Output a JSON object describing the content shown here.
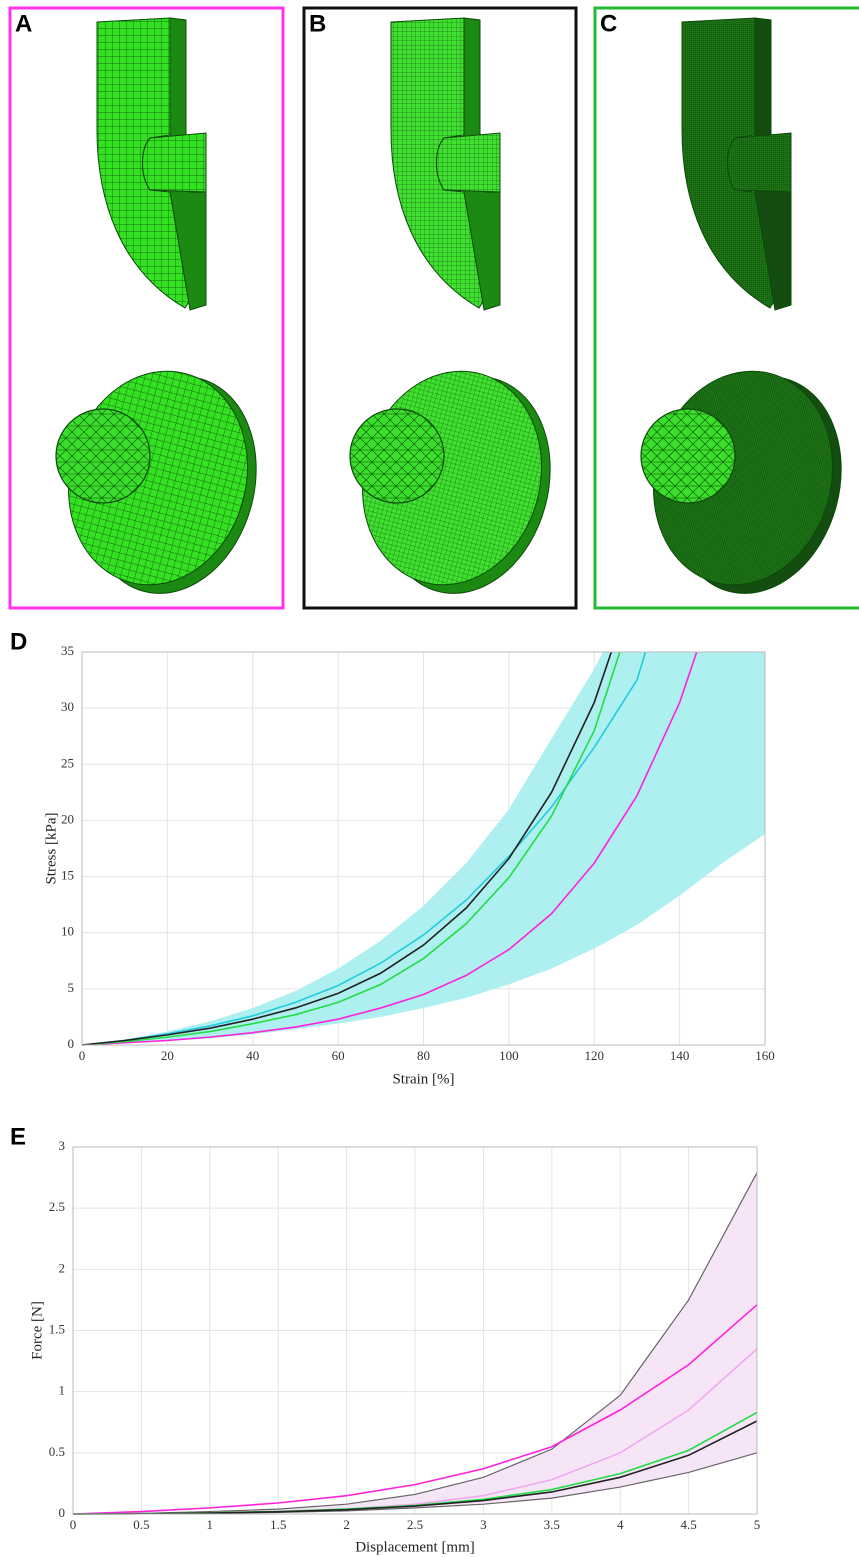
{
  "panels": [
    {
      "label": "A",
      "color": "#ff33ee"
    },
    {
      "label": "B",
      "color": "#111111"
    },
    {
      "label": "C",
      "color": "#22bb33"
    }
  ],
  "chart_data": [
    {
      "type": "line",
      "label": "D",
      "xlabel": "Strain [%]",
      "ylabel": "Stress [kPa]",
      "xlim": [
        0,
        160
      ],
      "ylim": [
        0,
        35
      ],
      "xticks": [
        0,
        20,
        40,
        60,
        80,
        100,
        120,
        140,
        160
      ],
      "yticks": [
        0,
        5,
        10,
        15,
        20,
        25,
        30,
        35
      ],
      "grid": true,
      "band": {
        "color": "#aef0f0",
        "x": [
          0,
          10,
          20,
          30,
          40,
          50,
          60,
          70,
          80,
          90,
          100,
          110,
          120,
          122,
          130,
          140,
          150,
          160
        ],
        "lower": [
          0,
          0.15,
          0.35,
          0.6,
          0.95,
          1.4,
          1.9,
          2.5,
          3.3,
          4.2,
          5.4,
          6.8,
          8.6,
          9.0,
          10.7,
          13.3,
          16.2,
          18.8
        ],
        "upper": [
          0,
          0.5,
          1.2,
          2.1,
          3.3,
          4.8,
          6.8,
          9.3,
          12.4,
          16.2,
          21,
          27.3,
          33.5,
          35,
          35,
          35,
          35,
          35
        ]
      },
      "series": [
        {
          "color": "#22ccdd",
          "x": [
            0,
            10,
            20,
            30,
            40,
            50,
            60,
            70,
            80,
            90,
            100,
            110,
            120,
            130,
            132
          ],
          "values": [
            0,
            0.4,
            1.0,
            1.7,
            2.6,
            3.8,
            5.3,
            7.3,
            9.8,
            12.9,
            16.8,
            21.2,
            26.5,
            32.5,
            35
          ]
        },
        {
          "color": "#ff22dd",
          "x": [
            0,
            10,
            20,
            30,
            40,
            50,
            60,
            70,
            80,
            90,
            100,
            110,
            120,
            130,
            140,
            144
          ],
          "values": [
            0,
            0.2,
            0.4,
            0.7,
            1.1,
            1.6,
            2.3,
            3.3,
            4.5,
            6.2,
            8.5,
            11.7,
            16.2,
            22.2,
            30.5,
            35
          ]
        },
        {
          "color": "#22dd44",
          "x": [
            0,
            10,
            20,
            30,
            40,
            50,
            60,
            70,
            80,
            90,
            100,
            110,
            120,
            126
          ],
          "values": [
            0,
            0.3,
            0.7,
            1.2,
            1.9,
            2.7,
            3.8,
            5.4,
            7.7,
            10.8,
            14.9,
            20.4,
            28,
            35
          ]
        },
        {
          "color": "#222222",
          "x": [
            0,
            10,
            20,
            30,
            40,
            50,
            60,
            70,
            80,
            90,
            100,
            110,
            120,
            124
          ],
          "values": [
            0,
            0.4,
            0.9,
            1.5,
            2.3,
            3.3,
            4.6,
            6.4,
            8.9,
            12.2,
            16.6,
            22.5,
            30.5,
            35
          ]
        }
      ]
    },
    {
      "type": "line",
      "label": "E",
      "xlabel": "Displacement [mm]",
      "ylabel": "Force [N]",
      "xlim": [
        0,
        5
      ],
      "ylim": [
        0,
        3
      ],
      "xticks": [
        0,
        0.5,
        1,
        1.5,
        2,
        2.5,
        3,
        3.5,
        4,
        4.5,
        5
      ],
      "yticks": [
        0,
        0.5,
        1,
        1.5,
        2,
        2.5,
        3
      ],
      "grid": true,
      "band": {
        "color": "#f6e4f7",
        "edge_color": "#666666",
        "x": [
          0,
          0.5,
          1,
          1.5,
          2,
          2.5,
          3,
          3.5,
          4,
          4.5,
          5
        ],
        "lower": [
          0,
          0.002,
          0.006,
          0.013,
          0.025,
          0.05,
          0.08,
          0.13,
          0.22,
          0.34,
          0.5
        ],
        "upper": [
          0,
          0.005,
          0.02,
          0.04,
          0.08,
          0.16,
          0.3,
          0.53,
          0.97,
          1.75,
          2.79
        ]
      },
      "series": [
        {
          "color": "#eeaaee",
          "x": [
            0,
            0.5,
            1,
            1.5,
            2,
            2.5,
            3,
            3.5,
            4,
            4.5,
            5
          ],
          "values": [
            0,
            0.003,
            0.01,
            0.02,
            0.04,
            0.08,
            0.15,
            0.28,
            0.5,
            0.85,
            1.35
          ]
        },
        {
          "color": "#ff22dd",
          "x": [
            0,
            0.5,
            1,
            1.5,
            2,
            2.5,
            3,
            3.5,
            4,
            4.5,
            5
          ],
          "values": [
            0,
            0.02,
            0.05,
            0.09,
            0.15,
            0.24,
            0.37,
            0.55,
            0.85,
            1.22,
            1.71
          ]
        },
        {
          "color": "#22dd44",
          "x": [
            0,
            0.5,
            1,
            1.5,
            2,
            2.5,
            3,
            3.5,
            4,
            4.5,
            5
          ],
          "values": [
            0,
            0.003,
            0.01,
            0.02,
            0.04,
            0.07,
            0.12,
            0.2,
            0.33,
            0.52,
            0.83
          ]
        },
        {
          "color": "#222222",
          "x": [
            0,
            0.5,
            1,
            1.5,
            2,
            2.5,
            3,
            3.5,
            4,
            4.5,
            5
          ],
          "values": [
            0,
            0.002,
            0.008,
            0.018,
            0.035,
            0.065,
            0.11,
            0.18,
            0.3,
            0.48,
            0.76
          ]
        }
      ]
    }
  ]
}
